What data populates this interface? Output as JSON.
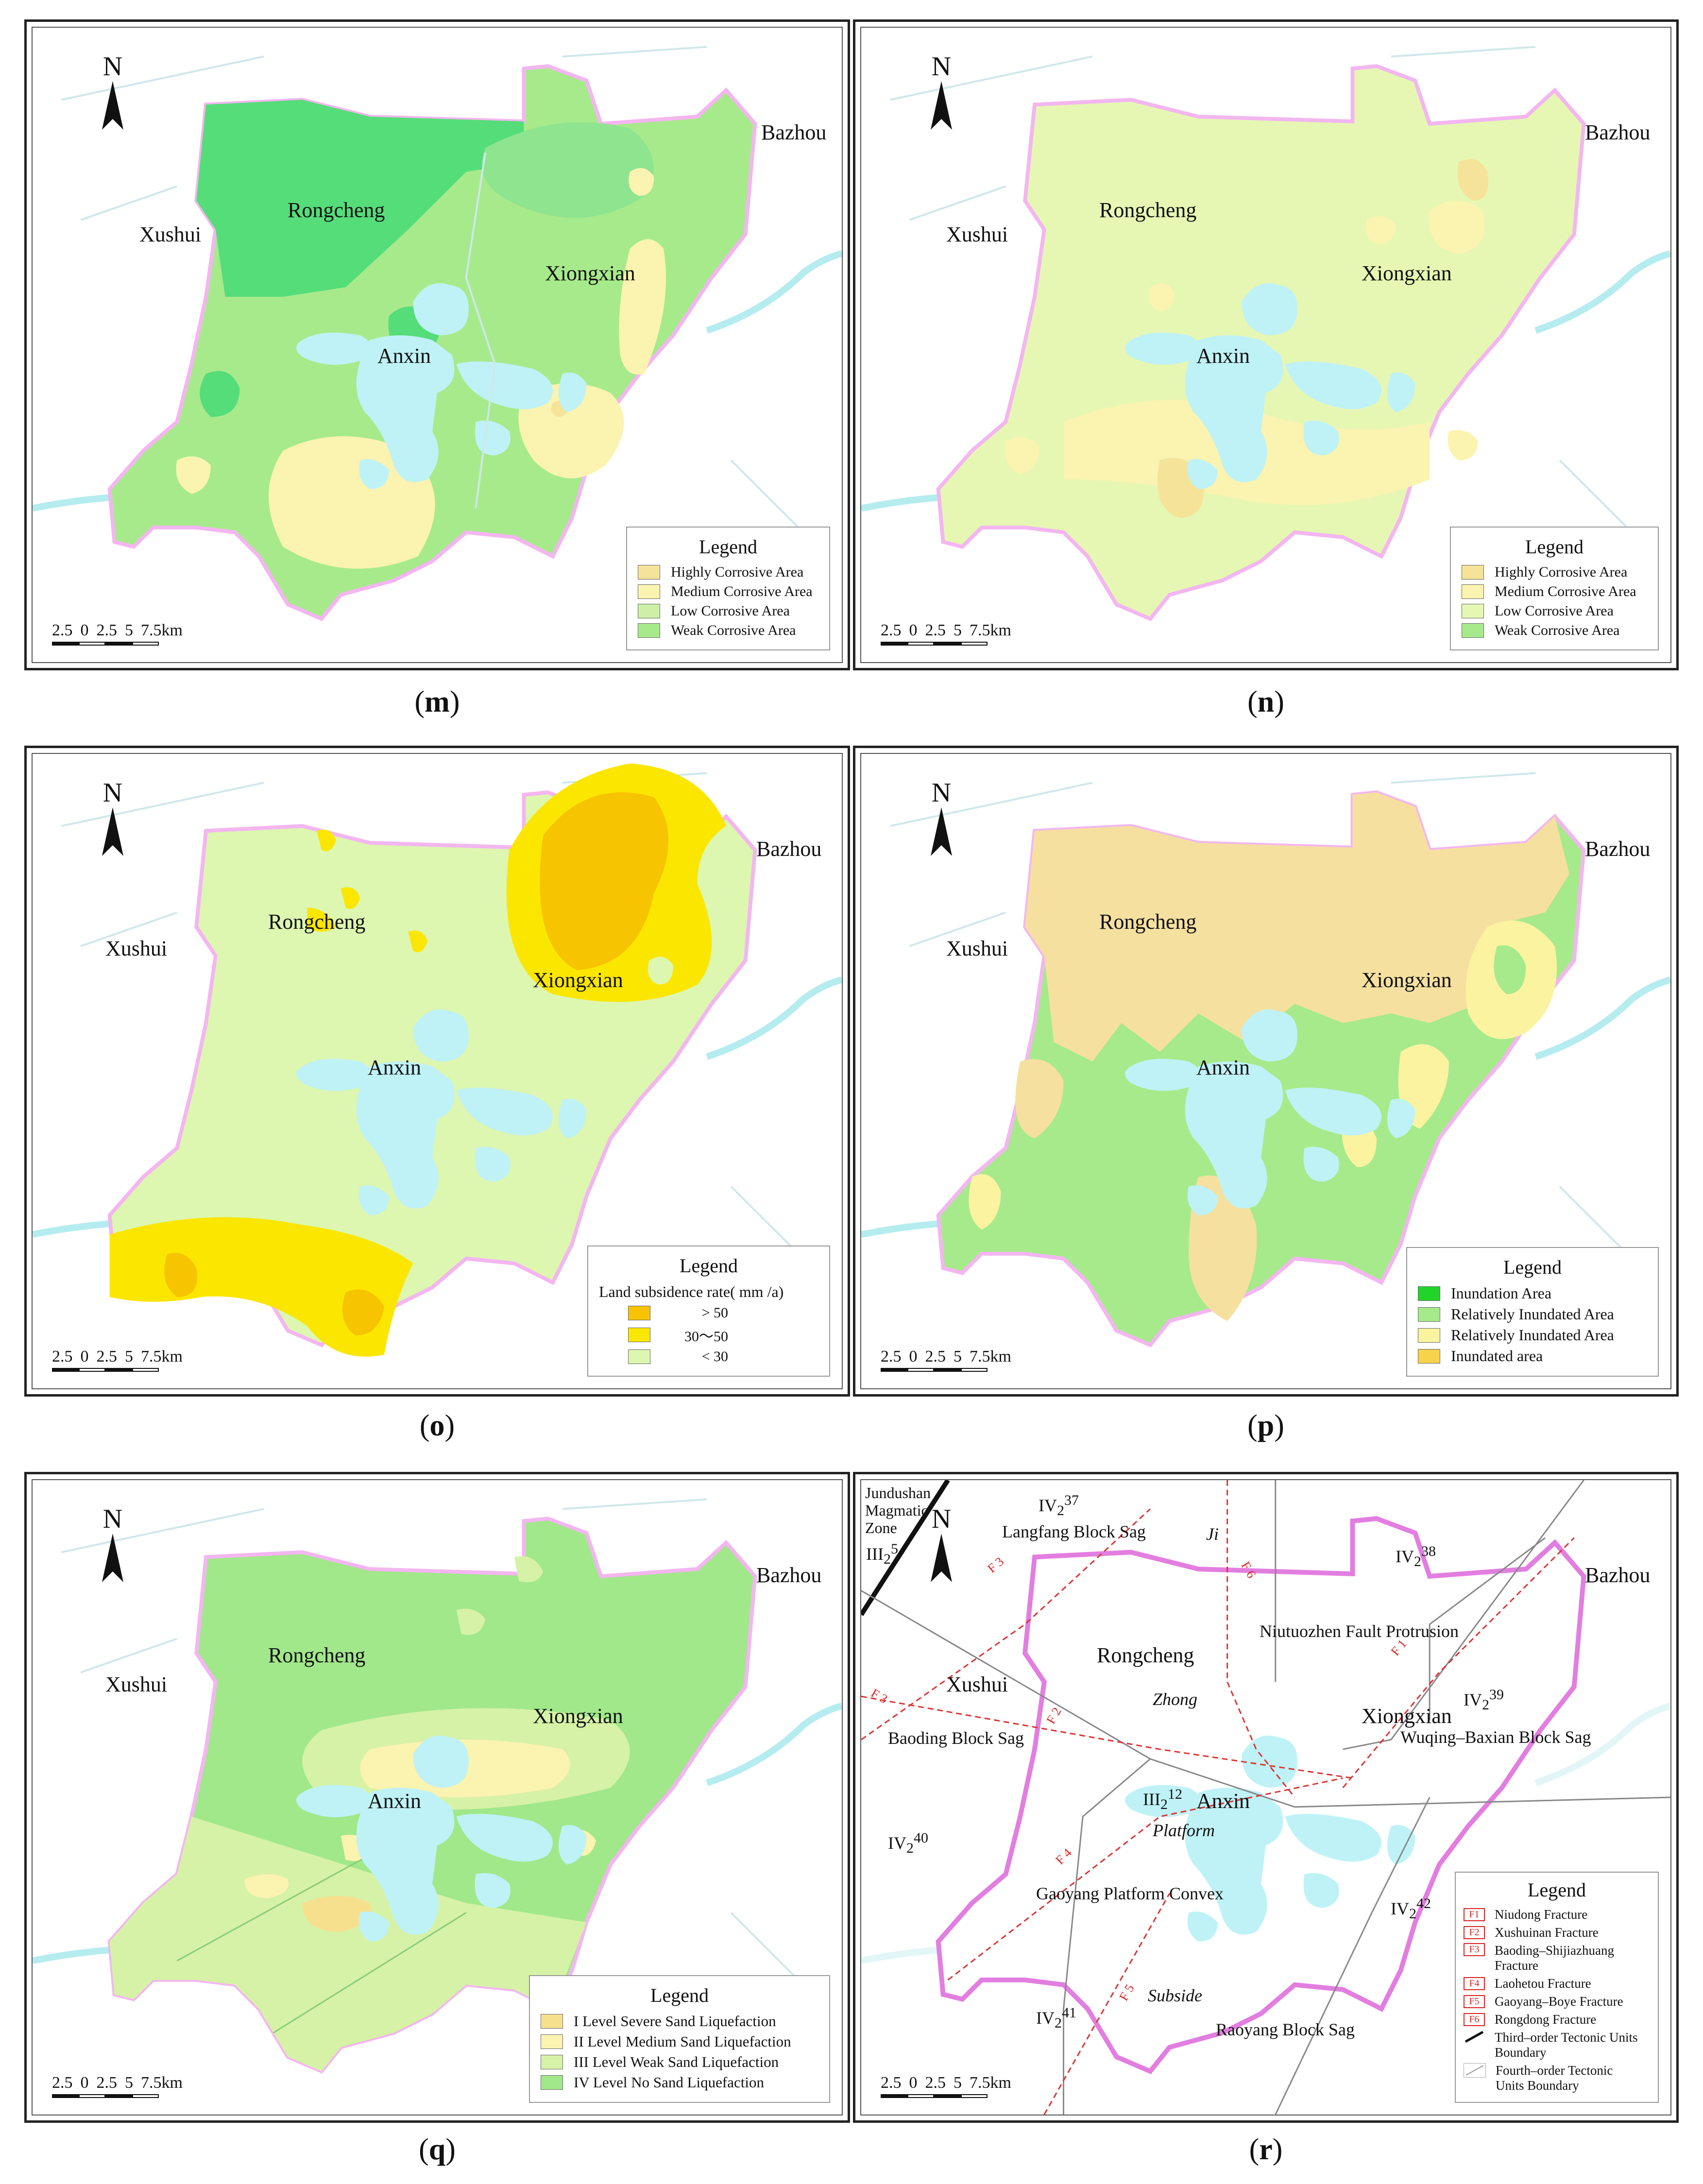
{
  "cities": {
    "xushui": "Xushui",
    "rongcheng": "Rongcheng",
    "xiongxian": "Xiongxian",
    "anxin": "Anxin",
    "bazhou": "Bazhou"
  },
  "north_label": "N",
  "scale": {
    "ticks": [
      "2.5",
      "0",
      "2.5",
      "5",
      "7.5km"
    ]
  },
  "colors": {
    "water": "#bff2f6",
    "river": "#9fe6ee",
    "boundary": "#f3b6f0",
    "road": "#c9d3d8"
  },
  "panels": [
    {
      "id": "m",
      "caption": "m",
      "legend_title": "Legend",
      "legend_items": [
        {
          "label": "Highly Corrosive Area",
          "color": "#f6e39a"
        },
        {
          "label": "Medium Corrosive Area",
          "color": "#fbf3b0"
        },
        {
          "label": "Low Corrosive Area",
          "color": "#cdf0a6"
        },
        {
          "label": "Weak Corrosive Area",
          "color": "#a7ea8b"
        }
      ]
    },
    {
      "id": "n",
      "caption": "n",
      "legend_title": "Legend",
      "legend_items": [
        {
          "label": "Highly Corrosive Area",
          "color": "#f6e39a"
        },
        {
          "label": "Medium Corrosive Area",
          "color": "#fbf3b0"
        },
        {
          "label": "Low Corrosive Area",
          "color": "#e6f7b3"
        },
        {
          "label": "Weak Corrosive Area",
          "color": "#a7ea8b"
        }
      ]
    },
    {
      "id": "o",
      "caption": "o",
      "legend_title": "Legend",
      "legend_subtitle": "Land  subsidence rate( mm /a)",
      "legend_items": [
        {
          "label": "> 50",
          "color": "#f6c400"
        },
        {
          "label": "30～50",
          "color": "#fbe600"
        },
        {
          "label": "< 30",
          "color": "#ddf6b0"
        }
      ]
    },
    {
      "id": "p",
      "caption": "p",
      "legend_title": "Legend",
      "legend_items": [
        {
          "label": "Inundation Area",
          "color": "#22d42a"
        },
        {
          "label": "Relatively Inundated Area",
          "color": "#a7ea8b"
        },
        {
          "label": "Relatively Inundated Area",
          "color": "#fbf3a0"
        },
        {
          "label": "Inundated area",
          "color": "#f7d24a"
        }
      ]
    },
    {
      "id": "q",
      "caption": "q",
      "legend_title": "Legend",
      "legend_items": [
        {
          "label": "I  Level  Severe  Sand  Liquefaction",
          "color": "#f6e08e"
        },
        {
          "label": "II  Level  Medium  Sand  Liquefaction",
          "color": "#fbf3b0"
        },
        {
          "label": "III  Level  Weak  Sand  Liquefaction",
          "color": "#d6f2a6"
        },
        {
          "label": "IV  Level  No  Sand  Liquefaction",
          "color": "#a0e88a"
        }
      ]
    },
    {
      "id": "r",
      "caption": "r",
      "legend_title": "Legend",
      "legend_items": [
        {
          "code": "F1",
          "label": "Niudong  Fracture"
        },
        {
          "code": "F2",
          "label": "Xushuinan  Fracture"
        },
        {
          "code": "F3",
          "label": "Baoding–Shijiazhuang  Fracture"
        },
        {
          "code": "F4",
          "label": "Laohetou  Fracture"
        },
        {
          "code": "F5",
          "label": "Gaoyang–Boye  Fracture"
        },
        {
          "code": "F6",
          "label": "Rongdong  Fracture"
        },
        {
          "code": "",
          "label": "Third–order  Tectonic  Units  Boundary"
        },
        {
          "code": "",
          "label": "Fourth–order  Tectonic  Units  Boundary"
        }
      ]
    }
  ],
  "tectonic": {
    "jundushan": "Jundushan Magmatic Zone",
    "iii2_5": "III",
    "iii2_5_sup": "5",
    "iv2_37": "IV",
    "iv2_37_sup": "37",
    "langfang": "Langfang  Block  Sag",
    "iv2_38": "IV",
    "iv2_38_sup": "38",
    "niutuozhen": "Niutuozhen  Fault  Protrusion",
    "iv2_39": "IV",
    "iv2_39_sup": "39",
    "wuqing": "Wuqing–Baxian  Block  Sag",
    "baoding": "Baoding  Block  Sag",
    "iv2_40": "IV",
    "iv2_40_sup": "40",
    "iii2_12": "III",
    "iii2_12_sup": "12",
    "platform": "Platform",
    "zhong": "Zhong",
    "ji": "Ji",
    "gaoyang": "Gaoyang  Platform  Convex",
    "iv2_42": "IV",
    "iv2_42_sup": "42",
    "iv2_41": "IV",
    "iv2_41_sup": "41",
    "subside": "Subside",
    "raoyang": "Raoyang  Block  Sag",
    "f_labels": [
      "F 1",
      "F 2",
      "F 3",
      "F 3",
      "F 4",
      "F 5",
      "F 6"
    ]
  }
}
